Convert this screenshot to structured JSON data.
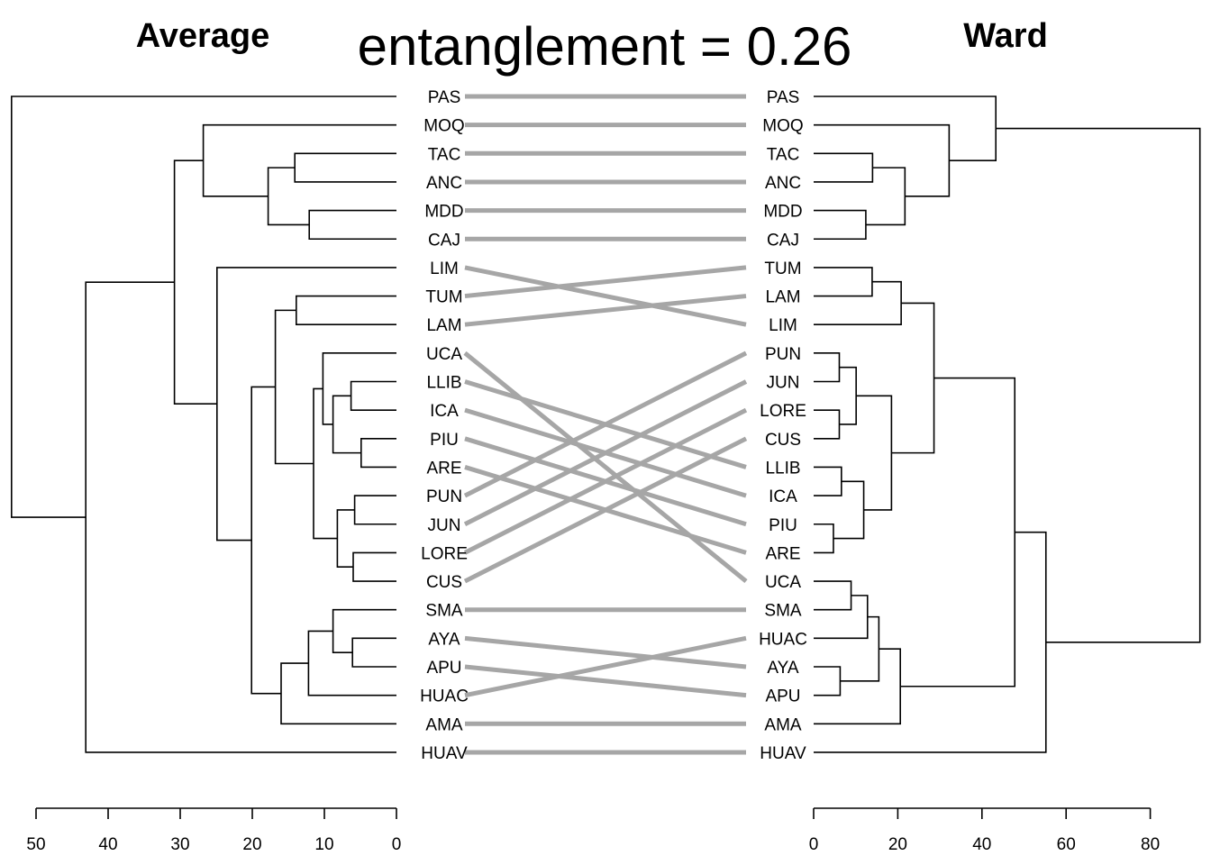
{
  "title": "entanglement = 0.26",
  "left": {
    "title": "Average",
    "axis_ticks": [
      50,
      40,
      30,
      20,
      10,
      0
    ],
    "axis_max": 50,
    "leaves": [
      "PAS",
      "MOQ",
      "TAC",
      "ANC",
      "MDD",
      "CAJ",
      "LIM",
      "TUM",
      "LAM",
      "UCA",
      "LLIB",
      "ICA",
      "PIU",
      "ARE",
      "PUN",
      "JUN",
      "LORE",
      "CUS",
      "SMA",
      "AYA",
      "APU",
      "HUAC",
      "AMA",
      "HUAV"
    ],
    "merges": [
      [
        [
          "TAC",
          "ANC"
        ],
        14.1
      ],
      [
        [
          "MDD",
          "CAJ"
        ],
        12.1
      ],
      [
        [
          0,
          1
        ],
        17.8
      ],
      [
        [
          "MOQ",
          2
        ],
        26.8
      ],
      [
        [
          "TUM",
          "LAM"
        ],
        13.9
      ],
      [
        [
          "LLIB",
          "ICA"
        ],
        6.3
      ],
      [
        [
          "PIU",
          "ARE"
        ],
        4.9
      ],
      [
        [
          5,
          6
        ],
        8.8
      ],
      [
        [
          "UCA",
          7
        ],
        10.2
      ],
      [
        [
          "PUN",
          "JUN"
        ],
        5.8
      ],
      [
        [
          "LORE",
          "CUS"
        ],
        6.0
      ],
      [
        [
          9,
          10
        ],
        8.2
      ],
      [
        [
          8,
          11
        ],
        11.5
      ],
      [
        [
          4,
          12
        ],
        16.8
      ],
      [
        [
          "AYA",
          "APU"
        ],
        6.1
      ],
      [
        [
          "SMA",
          14
        ],
        8.8
      ],
      [
        [
          15,
          "HUAC"
        ],
        12.2
      ],
      [
        [
          16,
          "AMA"
        ],
        16.0
      ],
      [
        [
          13,
          17
        ],
        20.1
      ],
      [
        [
          "LIM",
          18
        ],
        24.9
      ],
      [
        [
          3,
          19
        ],
        30.8
      ],
      [
        [
          20,
          "HUAV"
        ],
        43.1
      ],
      [
        [
          "PAS",
          21
        ],
        53.4
      ]
    ]
  },
  "right": {
    "title": "Ward",
    "axis_ticks": [
      0,
      20,
      40,
      60,
      80
    ],
    "axis_max": 80,
    "leaves": [
      "PAS",
      "MOQ",
      "TAC",
      "ANC",
      "MDD",
      "CAJ",
      "TUM",
      "LAM",
      "LIM",
      "PUN",
      "JUN",
      "LORE",
      "CUS",
      "LLIB",
      "ICA",
      "PIU",
      "ARE",
      "UCA",
      "SMA",
      "HUAC",
      "AYA",
      "APU",
      "AMA",
      "HUAV"
    ],
    "merges": [
      [
        [
          "TAC",
          "ANC"
        ],
        14.0
      ],
      [
        [
          "MDD",
          "CAJ"
        ],
        12.4
      ],
      [
        [
          0,
          1
        ],
        21.7
      ],
      [
        [
          "MOQ",
          2
        ],
        32.2
      ],
      [
        [
          "PAS",
          3
        ],
        43.3
      ],
      [
        [
          "TUM",
          "LAM"
        ],
        13.9
      ],
      [
        [
          5,
          "LIM"
        ],
        20.8
      ],
      [
        [
          "PUN",
          "JUN"
        ],
        6.1
      ],
      [
        [
          "LORE",
          "CUS"
        ],
        6.1
      ],
      [
        [
          7,
          8
        ],
        10.1
      ],
      [
        [
          "LLIB",
          "ICA"
        ],
        6.6
      ],
      [
        [
          "PIU",
          "ARE"
        ],
        4.7
      ],
      [
        [
          10,
          11
        ],
        11.9
      ],
      [
        [
          9,
          12
        ],
        18.5
      ],
      [
        [
          6,
          13
        ],
        28.6
      ],
      [
        [
          "UCA",
          "SMA"
        ],
        8.9
      ],
      [
        [
          15,
          "HUAC"
        ],
        12.8
      ],
      [
        [
          "AYA",
          "APU"
        ],
        6.3
      ],
      [
        [
          16,
          17
        ],
        15.5
      ],
      [
        [
          18,
          "AMA"
        ],
        20.6
      ],
      [
        [
          14,
          19
        ],
        47.8
      ],
      [
        [
          20,
          "HUAV"
        ],
        55.2
      ],
      [
        [
          4,
          21
        ],
        91.8
      ]
    ]
  }
}
